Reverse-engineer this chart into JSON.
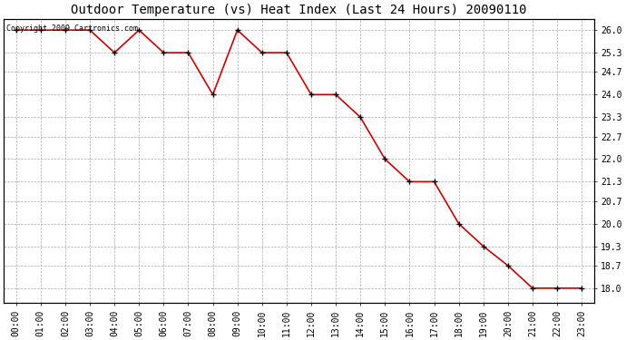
{
  "title": "Outdoor Temperature (vs) Heat Index (Last 24 Hours) 20090110",
  "copyright_text": "Copyright 2009 Cartronics.com",
  "x_labels": [
    "00:00",
    "01:00",
    "02:00",
    "03:00",
    "04:00",
    "05:00",
    "06:00",
    "07:00",
    "08:00",
    "09:00",
    "10:00",
    "11:00",
    "12:00",
    "13:00",
    "14:00",
    "15:00",
    "16:00",
    "17:00",
    "18:00",
    "19:00",
    "20:00",
    "21:00",
    "22:00",
    "23:00"
  ],
  "y_values": [
    26.0,
    26.0,
    26.0,
    26.0,
    25.3,
    26.0,
    25.3,
    25.3,
    24.0,
    26.0,
    25.3,
    25.3,
    24.0,
    24.0,
    23.3,
    22.0,
    21.3,
    21.3,
    20.0,
    19.3,
    18.7,
    18.0,
    18.0,
    18.0
  ],
  "y_ticks": [
    18.0,
    18.7,
    19.3,
    20.0,
    20.7,
    21.3,
    22.0,
    22.7,
    23.3,
    24.0,
    24.7,
    25.3,
    26.0
  ],
  "y_min": 17.55,
  "y_max": 26.35,
  "line_color": "#cc0000",
  "marker_color": "#000000",
  "bg_color": "#ffffff",
  "grid_color": "#aaaaaa",
  "title_fontsize": 10,
  "copyright_fontsize": 6,
  "tick_fontsize": 7
}
